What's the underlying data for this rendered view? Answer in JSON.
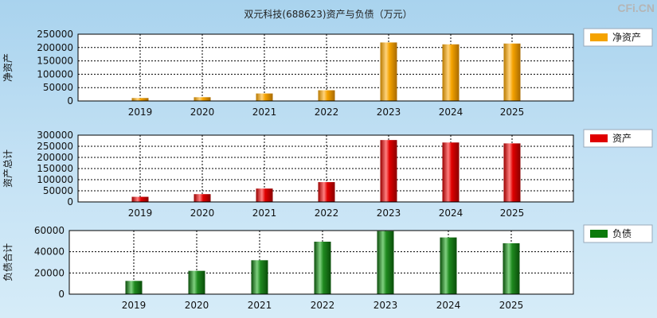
{
  "title": "双元科技(688623)资产与负债（万元）",
  "brand": "CFi.CN",
  "colors": {
    "net_assets": "#f5a300",
    "total_assets": "#e00000",
    "liabilities": "#0b7a0b"
  },
  "chart_data": [
    {
      "type": "bar",
      "title": "",
      "ylabel": "净资产",
      "legend": "净资产",
      "legend_placement": "right",
      "grid": true,
      "categories": [
        "2019",
        "2020",
        "2021",
        "2022",
        "2023",
        "2024",
        "2025"
      ],
      "yticks": [
        0,
        50000,
        100000,
        150000,
        200000,
        250000
      ],
      "ylim": [
        0,
        250000
      ],
      "series": [
        {
          "name": "净资产",
          "values": [
            11000,
            14000,
            28000,
            40000,
            219000,
            212000,
            215000
          ]
        }
      ]
    },
    {
      "type": "bar",
      "title": "",
      "ylabel": "资产总计",
      "legend": "资产",
      "legend_placement": "right",
      "grid": true,
      "categories": [
        "2019",
        "2020",
        "2021",
        "2022",
        "2023",
        "2024",
        "2025"
      ],
      "yticks": [
        0,
        50000,
        100000,
        150000,
        200000,
        250000,
        300000
      ],
      "ylim": [
        0,
        300000
      ],
      "series": [
        {
          "name": "资产",
          "values": [
            23000,
            35000,
            60000,
            89000,
            278000,
            267000,
            263000
          ]
        }
      ]
    },
    {
      "type": "bar",
      "title": "",
      "ylabel": "负债合计",
      "legend": "负债",
      "legend_placement": "right",
      "grid": true,
      "categories": [
        "2019",
        "2020",
        "2021",
        "2022",
        "2023",
        "2024",
        "2025"
      ],
      "yticks": [
        0,
        20000,
        40000,
        60000
      ],
      "ylim": [
        0,
        60000
      ],
      "series": [
        {
          "name": "负债",
          "values": [
            12500,
            22000,
            32000,
            49500,
            59500,
            53500,
            48000
          ]
        }
      ]
    }
  ]
}
